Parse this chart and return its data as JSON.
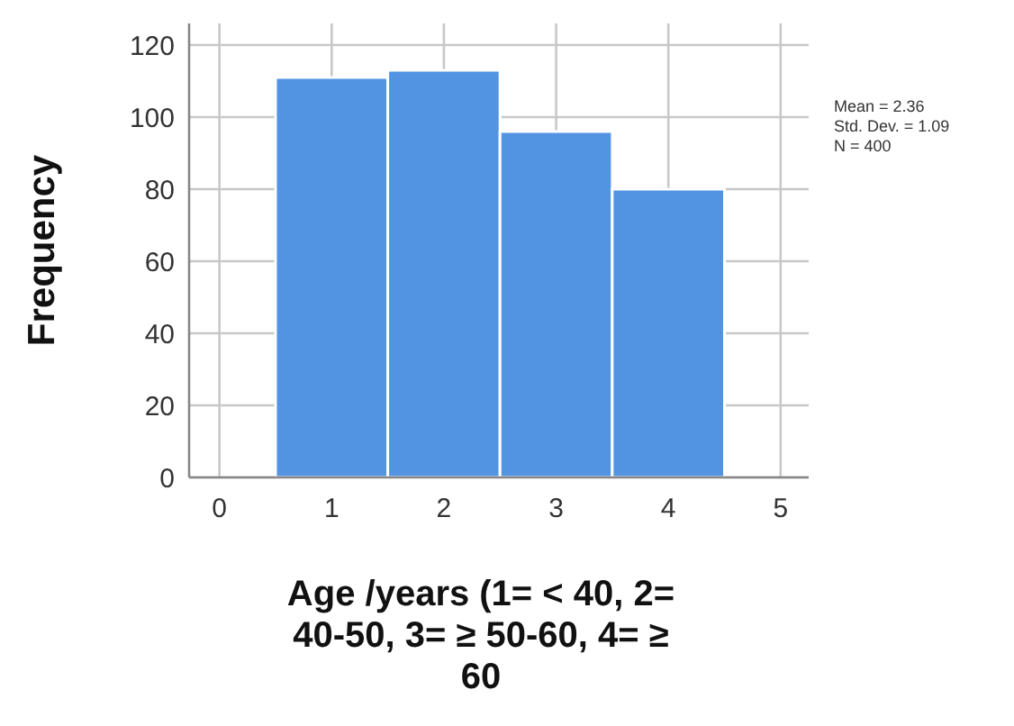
{
  "chart_data": {
    "type": "histogram",
    "xlabel": "Age /years (1= < 40, 2= 40-50, 3= ≥ 50-60, 4= ≥ 60",
    "ylabel": "Frequency",
    "bins": [
      0.5,
      1.5,
      2.5,
      3.5,
      4.5
    ],
    "values": [
      111,
      113,
      96,
      80
    ],
    "color": "#5294e2",
    "xlim": [
      -0.27,
      5.25
    ],
    "xticks": [
      0,
      1,
      2,
      3,
      4,
      5
    ],
    "ylim": [
      0,
      126
    ],
    "yticks": [
      0,
      20,
      40,
      60,
      80,
      100,
      120
    ],
    "grid": true,
    "annotations": [
      "Mean = 2.36",
      "Std. Dev. = 1.09",
      "N = 400"
    ]
  }
}
